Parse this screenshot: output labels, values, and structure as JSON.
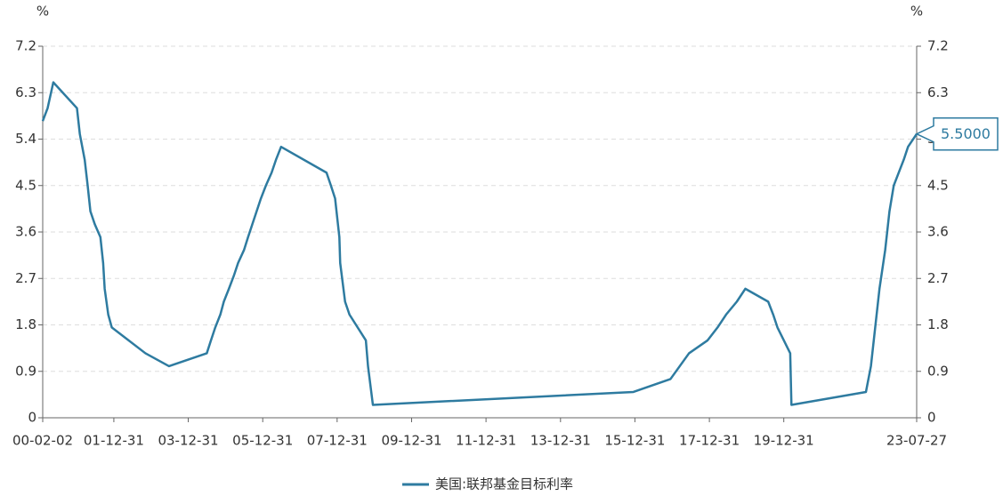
{
  "chart_data": {
    "type": "line",
    "y_unit": "%",
    "y2_unit": "%",
    "x": [
      "00-02-02",
      "00-03-21",
      "00-05-16",
      "01-01-03",
      "01-01-31",
      "01-03-20",
      "01-04-18",
      "01-05-15",
      "01-06-27",
      "01-08-21",
      "01-09-17",
      "01-10-02",
      "01-11-06",
      "01-12-11",
      "02-11-06",
      "03-06-25",
      "04-06-30",
      "04-08-10",
      "04-09-21",
      "04-11-10",
      "04-12-14",
      "05-02-02",
      "05-03-22",
      "05-05-03",
      "05-06-30",
      "05-08-09",
      "05-09-20",
      "05-11-01",
      "05-12-13",
      "06-01-31",
      "06-03-28",
      "06-05-10",
      "06-06-29",
      "07-09-18",
      "07-10-31",
      "07-12-11",
      "08-01-22",
      "08-01-30",
      "08-03-18",
      "08-04-30",
      "08-10-08",
      "08-10-29",
      "08-12-16",
      "15-12-16",
      "16-12-14",
      "17-03-15",
      "17-06-14",
      "17-12-13",
      "18-03-21",
      "18-06-13",
      "18-09-26",
      "18-12-19",
      "19-07-31",
      "19-09-18",
      "19-10-30",
      "20-03-03",
      "20-03-15",
      "22-03-16",
      "22-05-04",
      "22-06-15",
      "22-07-27",
      "22-09-21",
      "22-11-02",
      "22-12-14",
      "23-02-01",
      "23-03-22",
      "23-05-03",
      "23-07-27"
    ],
    "series": [
      {
        "name": "美国:联邦基金目标利率",
        "color": "#2e7ba0",
        "values": [
          5.75,
          6.0,
          6.5,
          6.0,
          5.5,
          5.0,
          4.5,
          4.0,
          3.75,
          3.5,
          3.0,
          2.5,
          2.0,
          1.75,
          1.25,
          1.0,
          1.25,
          1.5,
          1.75,
          2.0,
          2.25,
          2.5,
          2.75,
          3.0,
          3.25,
          3.5,
          3.75,
          4.0,
          4.25,
          4.5,
          4.75,
          5.0,
          5.25,
          4.75,
          4.5,
          4.25,
          3.5,
          3.0,
          2.25,
          2.0,
          1.5,
          1.0,
          0.25,
          0.5,
          0.75,
          1.0,
          1.25,
          1.5,
          1.75,
          2.0,
          2.25,
          2.5,
          2.25,
          2.0,
          1.75,
          1.25,
          0.25,
          0.5,
          1.0,
          1.75,
          2.5,
          3.25,
          4.0,
          4.5,
          4.75,
          5.0,
          5.25,
          5.5
        ],
        "value_labels": [
          null,
          null,
          null,
          null,
          null,
          null,
          null,
          null,
          null,
          null,
          null,
          null,
          null,
          null,
          null,
          null,
          null,
          null,
          null,
          null,
          null,
          null,
          null,
          null,
          null,
          null,
          null,
          null,
          null,
          null,
          null,
          null,
          null,
          null,
          null,
          null,
          null,
          null,
          null,
          null,
          null,
          null,
          null,
          null,
          null,
          null,
          null,
          null,
          null,
          null,
          null,
          null,
          null,
          null,
          null,
          null,
          null,
          null,
          null,
          null,
          null,
          null,
          null,
          null,
          null,
          null,
          null,
          "5.5000"
        ]
      }
    ],
    "xlim": [
      "00-02-02",
      "23-07-27"
    ],
    "xticks": [
      "00-02-02",
      "01-12-31",
      "03-12-31",
      "05-12-31",
      "07-12-31",
      "09-12-31",
      "11-12-31",
      "13-12-31",
      "15-12-31",
      "17-12-31",
      "19-12-31",
      "23-07-27"
    ],
    "ylim": [
      0,
      7.2
    ],
    "yticks": [
      0,
      0.9,
      1.8,
      2.7,
      3.6,
      4.5,
      5.4,
      6.3,
      7.2
    ],
    "y2lim": [
      0,
      7.2
    ],
    "y2ticks": [
      0,
      0.9,
      1.8,
      2.7,
      3.6,
      4.5,
      5.4,
      6.3,
      7.2
    ],
    "grid": true
  }
}
